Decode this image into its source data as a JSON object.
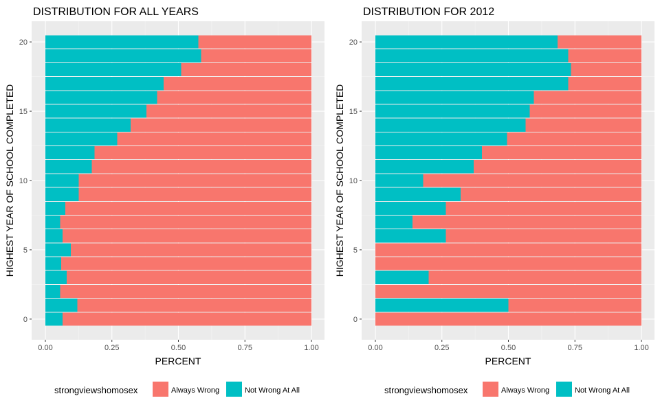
{
  "legend": {
    "title": "strongviewshomosex",
    "entries": [
      {
        "label": "Always Wrong",
        "color": "#F8766D"
      },
      {
        "label": "Not Wrong At All",
        "color": "#00BFC4"
      }
    ]
  },
  "chart_data": [
    {
      "type": "bar",
      "orientation": "horizontal",
      "stacked": "fill",
      "title": "DISTRIBUTION FOR ALL YEARS",
      "xlabel": "PERCENT",
      "ylabel": "HIGHEST YEAR OF SCHOOL COMPLETED",
      "xlim": [
        0,
        1
      ],
      "ylim": [
        -0.5,
        20.5
      ],
      "xticks": [
        "0.00",
        "0.25",
        "0.50",
        "0.75",
        "1.00"
      ],
      "yticks": [
        "0",
        "5",
        "10",
        "15",
        "20"
      ],
      "grid": true,
      "categories": [
        0,
        1,
        2,
        3,
        4,
        5,
        6,
        7,
        8,
        9,
        10,
        11,
        12,
        13,
        14,
        15,
        16,
        17,
        18,
        19,
        20
      ],
      "series": [
        {
          "name": "Not Wrong At All",
          "values": [
            0.065,
            0.12,
            0.055,
            0.08,
            0.06,
            0.095,
            0.065,
            0.055,
            0.075,
            0.125,
            0.125,
            0.175,
            0.185,
            0.27,
            0.32,
            0.38,
            0.42,
            0.445,
            0.51,
            0.585,
            0.575
          ]
        },
        {
          "name": "Always Wrong",
          "values": [
            0.935,
            0.88,
            0.945,
            0.92,
            0.94,
            0.905,
            0.935,
            0.945,
            0.925,
            0.875,
            0.875,
            0.825,
            0.815,
            0.73,
            0.68,
            0.62,
            0.58,
            0.555,
            0.49,
            0.415,
            0.425
          ]
        }
      ]
    },
    {
      "type": "bar",
      "orientation": "horizontal",
      "stacked": "fill",
      "title": "DISTRIBUTION FOR 2012",
      "xlabel": "PERCENT",
      "ylabel": "HIGHEST YEAR OF SCHOOL COMPLETED",
      "xlim": [
        0,
        1
      ],
      "ylim": [
        -0.5,
        20.5
      ],
      "xticks": [
        "0.00",
        "0.25",
        "0.50",
        "0.75",
        "1.00"
      ],
      "yticks": [
        "0",
        "5",
        "10",
        "15",
        "20"
      ],
      "grid": true,
      "categories": [
        0,
        1,
        2,
        3,
        4,
        5,
        6,
        7,
        8,
        9,
        10,
        11,
        12,
        13,
        14,
        15,
        16,
        17,
        18,
        19,
        20
      ],
      "series": [
        {
          "name": "Not Wrong At All",
          "values": [
            0,
            0.5,
            0,
            0.2,
            0,
            0,
            0.265,
            0.14,
            0.265,
            0.32,
            0.18,
            0.37,
            0.4,
            0.495,
            0.565,
            0.58,
            0.595,
            0.725,
            0.735,
            0.725,
            0.685
          ]
        },
        {
          "name": "Always Wrong",
          "values": [
            1,
            0.5,
            1,
            0.8,
            1,
            1,
            0.735,
            0.86,
            0.735,
            0.68,
            0.82,
            0.63,
            0.6,
            0.505,
            0.435,
            0.42,
            0.405,
            0.275,
            0.265,
            0.275,
            0.315
          ]
        }
      ]
    }
  ]
}
